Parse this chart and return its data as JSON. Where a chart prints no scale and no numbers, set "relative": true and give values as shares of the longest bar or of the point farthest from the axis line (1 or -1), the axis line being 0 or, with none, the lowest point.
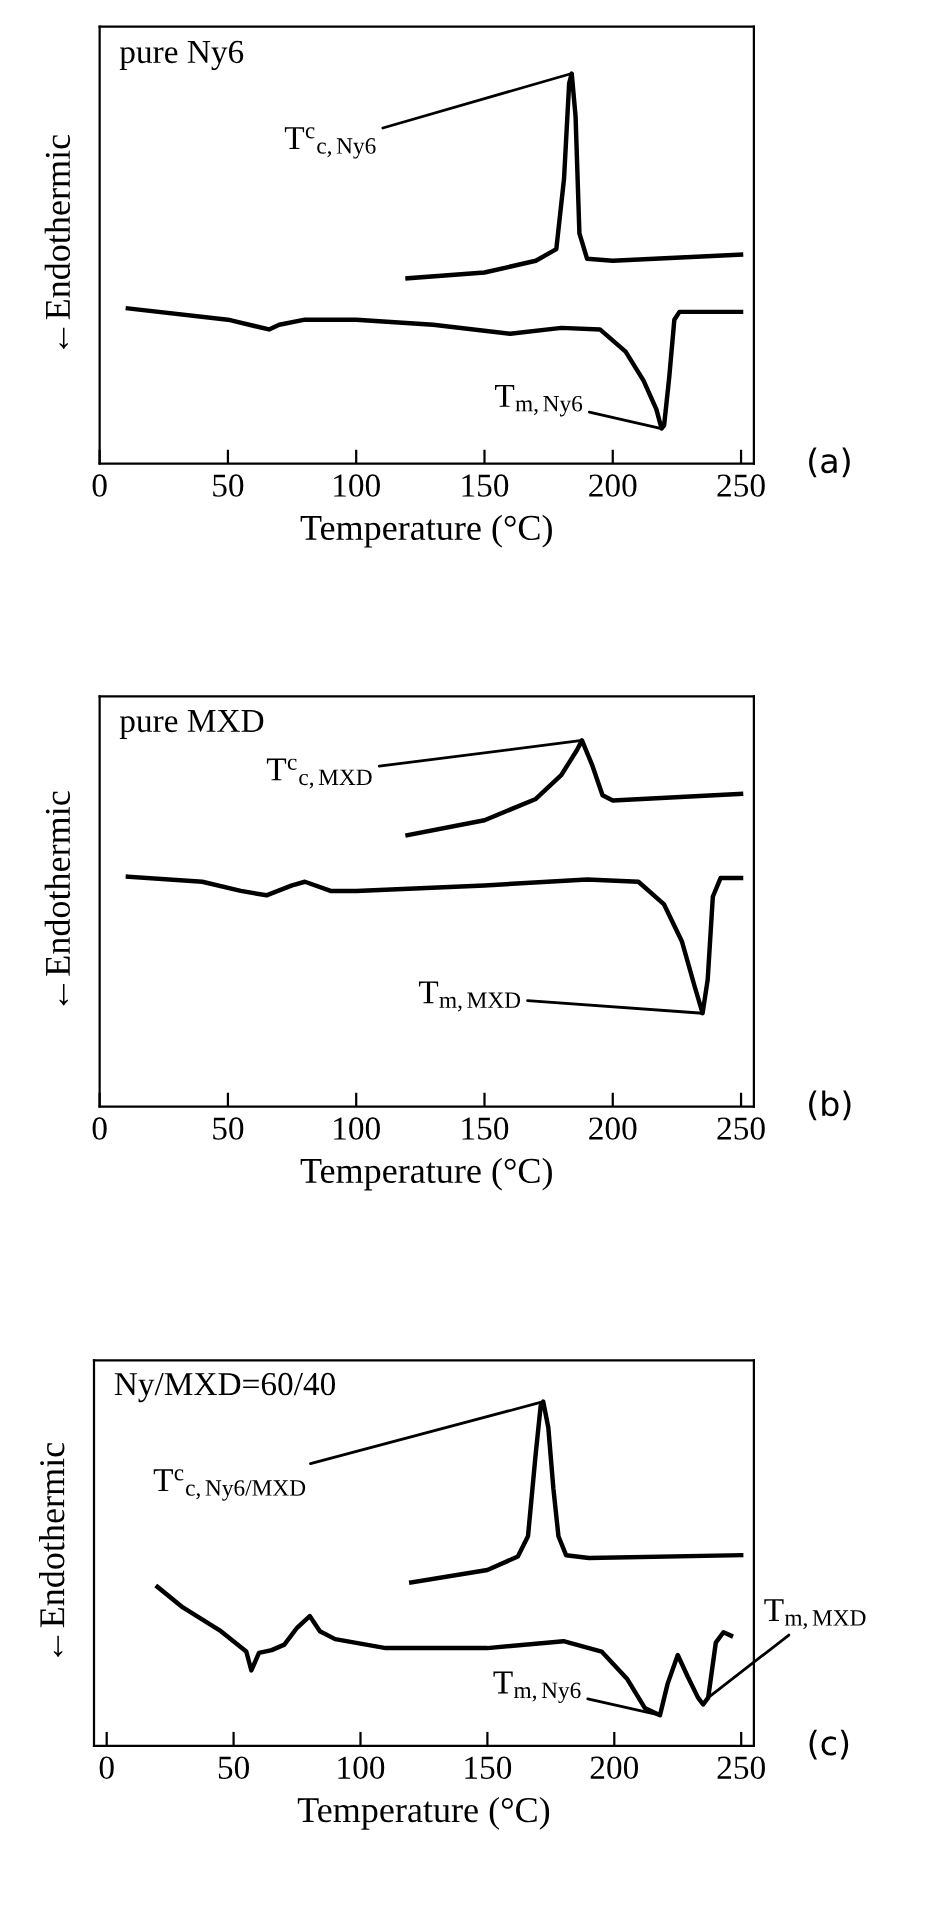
{
  "chart_data": [
    {
      "type": "line",
      "title": "pure Ny6",
      "xlabel": "Temperature (°C)",
      "ylabel": "←Endothermic",
      "relative": true,
      "tick_labels": "x",
      "xlim": [
        0,
        255
      ],
      "xticks": [
        0,
        50,
        100,
        150,
        200,
        250
      ],
      "series": [
        {
          "color": "#000000",
          "x": [
            120,
            150,
            170,
            178,
            181,
            183,
            184,
            185.5,
            187,
            190,
            200,
            250
          ],
          "values": [
            0.475,
            0.49,
            0.52,
            0.55,
            0.73,
            0.975,
            1.0,
            0.89,
            0.59,
            0.525,
            0.52,
            0.536
          ]
        },
        {
          "color": "#000000",
          "x": [
            11,
            50,
            66,
            70,
            80,
            100,
            130,
            160,
            180,
            195,
            205,
            212,
            217,
            219,
            220,
            222,
            224,
            226,
            250
          ],
          "values": [
            0.398,
            0.369,
            0.344,
            0.356,
            0.369,
            0.369,
            0.356,
            0.333,
            0.348,
            0.344,
            0.287,
            0.213,
            0.139,
            0.09,
            0.098,
            0.221,
            0.369,
            0.389,
            0.389
          ]
        }
      ],
      "annotations": [
        "(a)",
        {
          "text": "T$^{c}$$_{c,Ny6}$",
          "x": 184,
          "y": 1.0
        },
        {
          "text": "T$_{m,Ny6}$",
          "x": 219,
          "y": 0.09
        }
      ]
    },
    {
      "type": "line",
      "title": "pure MXD",
      "xlabel": "Temperature (°C)",
      "ylabel": "←Endothermic",
      "relative": true,
      "tick_labels": "x",
      "xlim": [
        0,
        255
      ],
      "xticks": [
        0,
        50,
        100,
        150,
        200,
        250
      ],
      "series": [
        {
          "color": "#000000",
          "x": [
            120,
            150,
            170,
            180,
            186,
            188,
            192,
            196,
            200,
            250
          ],
          "values": [
            0.741,
            0.782,
            0.84,
            0.906,
            0.973,
            1.0,
            0.932,
            0.85,
            0.836,
            0.854
          ]
        },
        {
          "color": "#000000",
          "x": [
            11,
            40,
            55,
            65,
            75,
            80,
            90,
            100,
            150,
            190,
            210,
            220,
            227,
            232,
            235,
            237,
            239,
            242,
            250
          ],
          "values": [
            0.628,
            0.614,
            0.589,
            0.577,
            0.604,
            0.614,
            0.589,
            0.589,
            0.604,
            0.62,
            0.614,
            0.552,
            0.45,
            0.326,
            0.255,
            0.347,
            0.573,
            0.624,
            0.624
          ]
        }
      ],
      "annotations": [
        "(b)",
        {
          "text": "T$^{c}$$_{c,MXD}$",
          "x": 188,
          "y": 1.0
        },
        {
          "text": "T$_{m,MXD}$",
          "x": 235,
          "y": 0.255
        }
      ]
    },
    {
      "type": "line",
      "title": "Ny/MXD=60/40",
      "xlabel": "Temperature (°C)",
      "ylabel": "←Endothermic",
      "relative": true,
      "tick_labels": "x",
      "xlim": [
        -5,
        255
      ],
      "xticks": [
        0,
        50,
        100,
        150,
        200,
        250
      ],
      "series": [
        {
          "color": "#000000",
          "x": [
            120,
            150,
            162,
            166,
            169,
            171,
            172,
            174,
            176,
            178,
            181,
            190,
            250
          ],
          "values": [
            0.475,
            0.511,
            0.55,
            0.609,
            0.846,
            0.988,
            1.0,
            0.925,
            0.748,
            0.609,
            0.554,
            0.546,
            0.554
          ]
        },
        {
          "color": "#000000",
          "x": [
            20,
            30,
            45,
            55,
            57,
            60,
            65,
            70,
            75,
            80,
            84,
            90,
            110,
            150,
            180,
            195,
            205,
            212,
            218,
            221,
            225,
            229,
            233,
            235,
            237,
            240,
            243,
            246
          ],
          "values": [
            0.462,
            0.402,
            0.333,
            0.274,
            0.219,
            0.27,
            0.278,
            0.294,
            0.343,
            0.377,
            0.333,
            0.31,
            0.284,
            0.284,
            0.304,
            0.274,
            0.195,
            0.11,
            0.089,
            0.18,
            0.264,
            0.2,
            0.14,
            0.12,
            0.14,
            0.3,
            0.33,
            0.32
          ]
        }
      ],
      "annotations": [
        "(c)",
        {
          "text": "T$^{c}$$_{c,Ny6/MXD}$",
          "x": 172,
          "y": 1.0
        },
        {
          "text": "T$_{m,Ny6}$",
          "x": 218,
          "y": 0.089
        },
        {
          "text": "T$_{m,MXD}$",
          "x": 237,
          "y": 0.14
        }
      ]
    }
  ]
}
